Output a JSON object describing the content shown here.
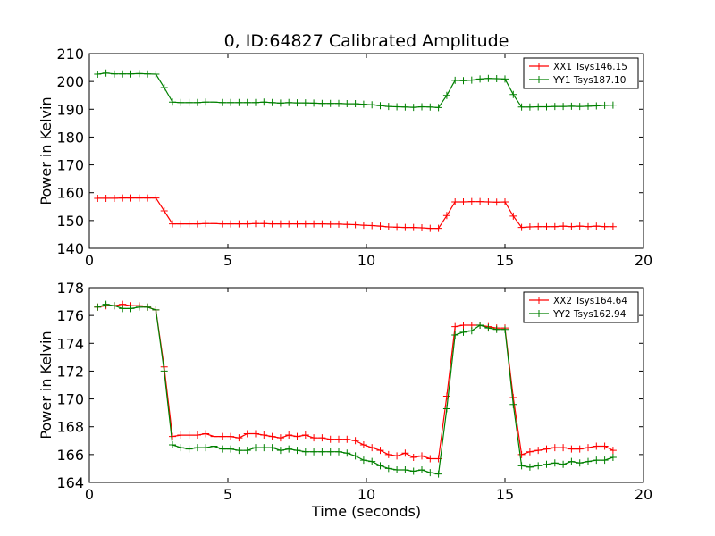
{
  "figure": {
    "title": "0, ID:64827 Calibrated Amplitude",
    "xlabel": "Time (seconds)"
  },
  "chart_data": [
    {
      "type": "line",
      "title": "0, ID:64827 Calibrated Amplitude",
      "xlabel": "",
      "ylabel": "Power in Kelvin",
      "xlim": [
        0,
        20
      ],
      "ylim": [
        140,
        210
      ],
      "xticks": [
        0,
        5,
        10,
        15,
        20
      ],
      "yticks": [
        140,
        150,
        160,
        170,
        180,
        190,
        200,
        210
      ],
      "grid": false,
      "legend_position": "top-right",
      "x": [
        0.3,
        0.6,
        0.9,
        1.2,
        1.5,
        1.8,
        2.1,
        2.4,
        2.7,
        3.0,
        3.3,
        3.6,
        3.9,
        4.2,
        4.5,
        4.8,
        5.1,
        5.4,
        5.7,
        6.0,
        6.3,
        6.6,
        6.9,
        7.2,
        7.5,
        7.8,
        8.1,
        8.4,
        8.7,
        9.0,
        9.3,
        9.6,
        9.9,
        10.2,
        10.5,
        10.8,
        11.1,
        11.4,
        11.7,
        12.0,
        12.3,
        12.6,
        12.9,
        13.2,
        13.5,
        13.8,
        14.1,
        14.4,
        14.7,
        15.0,
        15.3,
        15.6,
        15.9,
        16.2,
        16.5,
        16.8,
        17.1,
        17.4,
        17.7,
        18.0,
        18.3,
        18.6,
        18.9
      ],
      "series": [
        {
          "name": "XX1 Tsys146.15",
          "color": "#ff0000",
          "values": [
            158.0,
            158.0,
            158.0,
            158.1,
            158.1,
            158.1,
            158.1,
            158.1,
            153.5,
            148.8,
            148.8,
            148.8,
            148.8,
            148.9,
            148.9,
            148.8,
            148.8,
            148.8,
            148.8,
            148.9,
            148.9,
            148.8,
            148.8,
            148.8,
            148.8,
            148.8,
            148.8,
            148.8,
            148.7,
            148.7,
            148.6,
            148.5,
            148.3,
            148.2,
            148.0,
            147.7,
            147.6,
            147.5,
            147.5,
            147.4,
            147.2,
            147.2,
            151.8,
            156.7,
            156.7,
            156.8,
            156.8,
            156.7,
            156.6,
            156.7,
            151.6,
            147.5,
            147.7,
            147.8,
            147.8,
            147.8,
            148.0,
            147.8,
            148.0,
            147.8,
            148.0,
            147.8,
            147.8
          ]
        },
        {
          "name": "YY1 Tsys187.10",
          "color": "#008000",
          "values": [
            202.6,
            203.0,
            202.7,
            202.7,
            202.7,
            202.8,
            202.7,
            202.6,
            197.8,
            192.6,
            192.4,
            192.4,
            192.4,
            192.6,
            192.6,
            192.4,
            192.4,
            192.4,
            192.4,
            192.4,
            192.6,
            192.4,
            192.2,
            192.4,
            192.3,
            192.3,
            192.2,
            192.1,
            192.1,
            192.1,
            192.0,
            192.0,
            191.8,
            191.6,
            191.3,
            191.0,
            190.9,
            190.8,
            190.7,
            190.9,
            190.8,
            190.6,
            195.0,
            200.4,
            200.3,
            200.5,
            200.9,
            201.1,
            201.0,
            200.9,
            195.3,
            190.8,
            190.8,
            190.9,
            190.9,
            191.0,
            191.0,
            191.1,
            191.0,
            191.1,
            191.2,
            191.4,
            191.5
          ]
        }
      ]
    },
    {
      "type": "line",
      "title": "",
      "xlabel": "Time (seconds)",
      "ylabel": "Power in Kelvin",
      "xlim": [
        0,
        20
      ],
      "ylim": [
        164,
        178
      ],
      "xticks": [
        0,
        5,
        10,
        15,
        20
      ],
      "yticks": [
        164,
        166,
        168,
        170,
        172,
        174,
        176,
        178
      ],
      "grid": false,
      "legend_position": "top-right",
      "x": [
        0.3,
        0.6,
        0.9,
        1.2,
        1.5,
        1.8,
        2.1,
        2.4,
        2.7,
        3.0,
        3.3,
        3.6,
        3.9,
        4.2,
        4.5,
        4.8,
        5.1,
        5.4,
        5.7,
        6.0,
        6.3,
        6.6,
        6.9,
        7.2,
        7.5,
        7.8,
        8.1,
        8.4,
        8.7,
        9.0,
        9.3,
        9.6,
        9.9,
        10.2,
        10.5,
        10.8,
        11.1,
        11.4,
        11.7,
        12.0,
        12.3,
        12.6,
        12.9,
        13.2,
        13.5,
        13.8,
        14.1,
        14.4,
        14.7,
        15.0,
        15.3,
        15.6,
        15.9,
        16.2,
        16.5,
        16.8,
        17.1,
        17.4,
        17.7,
        18.0,
        18.3,
        18.6,
        18.9
      ],
      "series": [
        {
          "name": "XX2 Tsys164.64",
          "color": "#ff0000",
          "values": [
            176.6,
            176.7,
            176.7,
            176.8,
            176.7,
            176.7,
            176.6,
            176.4,
            172.3,
            167.3,
            167.4,
            167.4,
            167.4,
            167.5,
            167.3,
            167.3,
            167.3,
            167.2,
            167.5,
            167.5,
            167.4,
            167.3,
            167.2,
            167.4,
            167.3,
            167.4,
            167.2,
            167.2,
            167.1,
            167.1,
            167.1,
            167.0,
            166.7,
            166.5,
            166.3,
            166.0,
            165.9,
            166.1,
            165.8,
            165.9,
            165.7,
            165.7,
            170.2,
            175.2,
            175.3,
            175.3,
            175.3,
            175.2,
            175.1,
            175.1,
            170.1,
            166.0,
            166.2,
            166.3,
            166.4,
            166.5,
            166.5,
            166.4,
            166.4,
            166.5,
            166.6,
            166.6,
            166.3
          ]
        },
        {
          "name": "YY2 Tsys162.94",
          "color": "#008000",
          "values": [
            176.6,
            176.8,
            176.7,
            176.5,
            176.5,
            176.6,
            176.6,
            176.4,
            172.0,
            166.7,
            166.5,
            166.4,
            166.5,
            166.5,
            166.6,
            166.4,
            166.4,
            166.3,
            166.3,
            166.5,
            166.5,
            166.5,
            166.3,
            166.4,
            166.3,
            166.2,
            166.2,
            166.2,
            166.2,
            166.2,
            166.1,
            165.9,
            165.6,
            165.5,
            165.2,
            165.0,
            164.9,
            164.9,
            164.8,
            164.9,
            164.7,
            164.6,
            169.3,
            174.6,
            174.8,
            174.9,
            175.3,
            175.1,
            175.0,
            175.0,
            169.6,
            165.2,
            165.1,
            165.2,
            165.3,
            165.4,
            165.3,
            165.5,
            165.4,
            165.5,
            165.6,
            165.6,
            165.8
          ]
        }
      ]
    }
  ]
}
